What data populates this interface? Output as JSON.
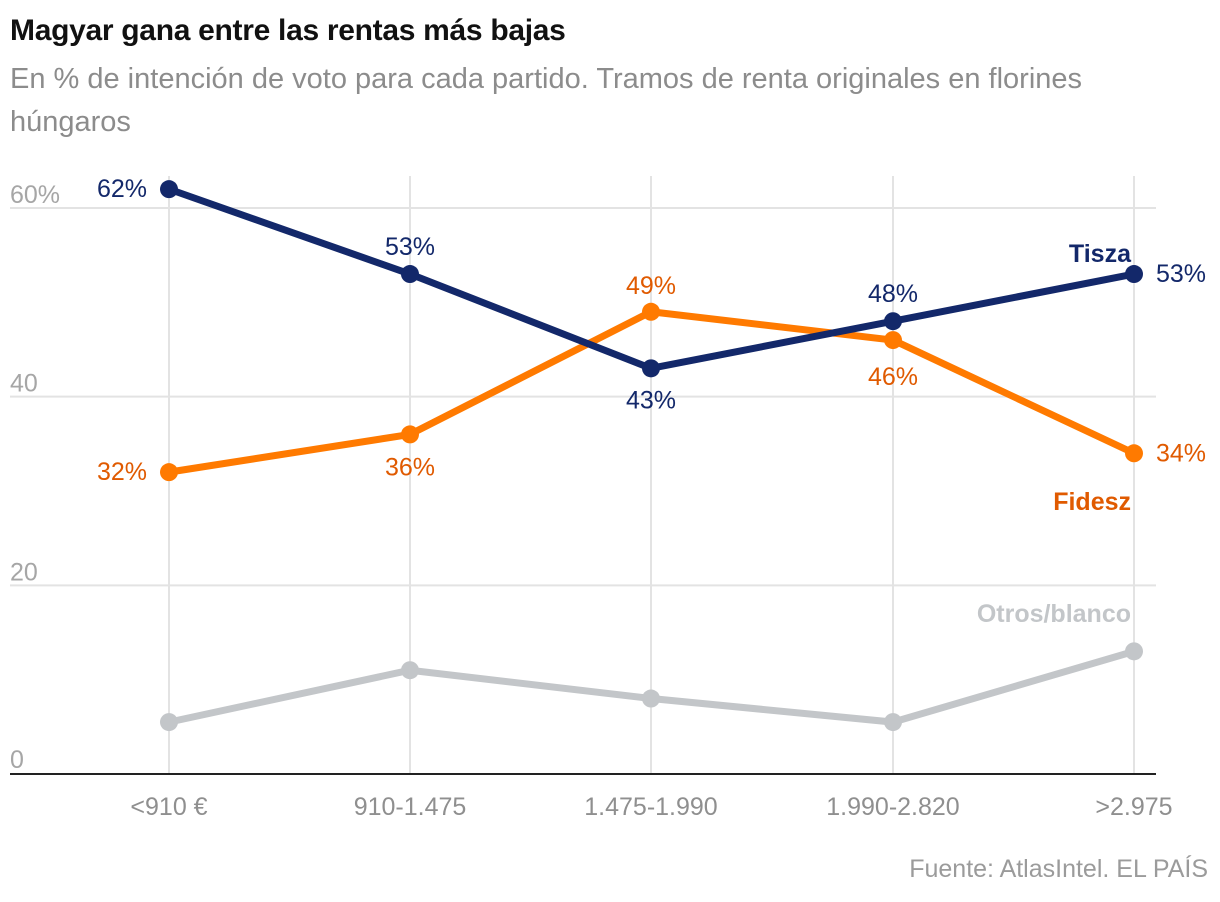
{
  "title": "Magyar gana entre las rentas más bajas",
  "subtitle": "En % de intención de voto para cada partido. Tramos de renta originales en florines húngaros",
  "source": "Fuente: AtlasIntel. EL PAÍS",
  "chart_data": {
    "type": "line",
    "categories": [
      "<910 €",
      "910-1.475",
      "1.475-1.990",
      "1.990-2.820",
      ">2.975"
    ],
    "ylim": [
      0,
      62
    ],
    "yticks": [
      0,
      20,
      40,
      60
    ],
    "ytick_labels": [
      "0",
      "20",
      "40",
      "60%"
    ],
    "grid": true,
    "series": [
      {
        "name": "Tisza",
        "color": "#13286a",
        "label_color": "#13286a",
        "values": [
          62,
          53,
          43,
          48,
          53
        ],
        "labels": [
          "62%",
          "53%",
          "43%",
          "48%",
          "53%"
        ]
      },
      {
        "name": "Fidesz",
        "color": "#ff7a00",
        "label_color": "#e05a00",
        "values": [
          32,
          36,
          49,
          46,
          34
        ],
        "labels": [
          "32%",
          "36%",
          "49%",
          "46%",
          "34%"
        ]
      },
      {
        "name": "Otros/blanco",
        "color": "#c3c6c9",
        "label_color": "#c3c6c9",
        "values": [
          5.5,
          11,
          8,
          5.5,
          13
        ],
        "labels": [
          "",
          "",
          "",
          "",
          ""
        ]
      }
    ]
  }
}
